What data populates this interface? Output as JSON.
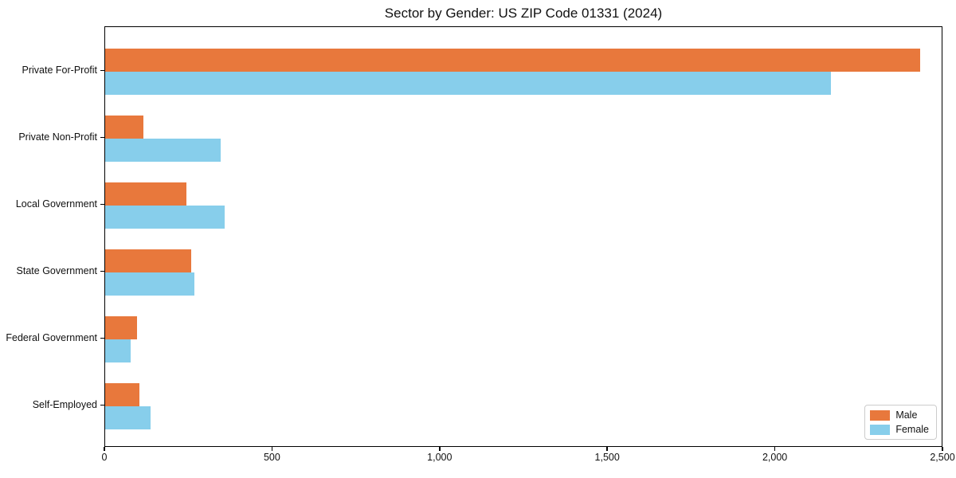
{
  "chart_data": {
    "type": "bar",
    "orientation": "horizontal",
    "title": "Sector by Gender: US ZIP Code 01331 (2024)",
    "categories": [
      "Private For-Profit",
      "Private Non-Profit",
      "Local Government",
      "State Government",
      "Federal Government",
      "Self-Employed"
    ],
    "series": [
      {
        "name": "Male",
        "color": "#e8783c",
        "values": [
          2430,
          115,
          242,
          256,
          96,
          101
        ]
      },
      {
        "name": "Female",
        "color": "#87ceeb",
        "values": [
          2165,
          345,
          356,
          266,
          77,
          136
        ]
      }
    ],
    "xlabel": "",
    "ylabel": "",
    "xlim": [
      0,
      2500
    ],
    "x_ticks": [
      0,
      500,
      1000,
      1500,
      2000,
      2500
    ],
    "x_tick_labels": [
      "0",
      "500",
      "1,000",
      "1,500",
      "2,000",
      "2,500"
    ],
    "grid": false,
    "legend": {
      "position": "lower-right",
      "entries": [
        "Male",
        "Female"
      ]
    },
    "axis_color": "#000000",
    "background_color": "#ffffff"
  }
}
